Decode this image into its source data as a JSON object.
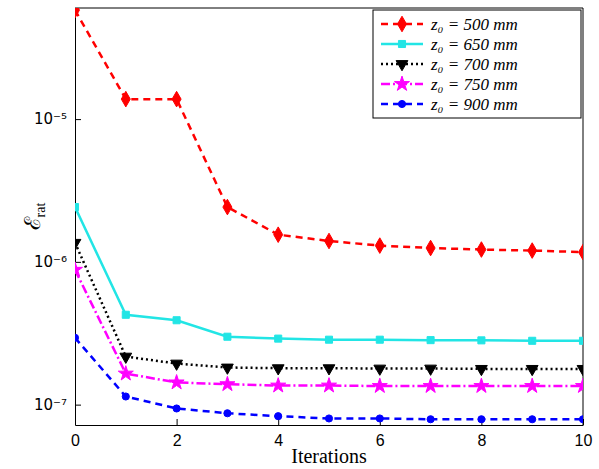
{
  "chart_data": {
    "type": "line",
    "y_label": "ℰrat",
    "x_label": "Iterations",
    "x": [
      0,
      1,
      2,
      3,
      4,
      5,
      6,
      7,
      8,
      9,
      10
    ],
    "xlim": [
      0,
      10
    ],
    "xticks": [
      0,
      2,
      4,
      6,
      8,
      10
    ],
    "ylim": [
      7.2e-08,
      6e-05
    ],
    "yticks": [
      {
        "value": 1e-07,
        "label": "10⁻⁷"
      },
      {
        "value": 1e-06,
        "label": "10⁻⁶"
      },
      {
        "value": 1e-05,
        "label": "10⁻⁵"
      }
    ],
    "log": "y",
    "grid": false,
    "legend": "upper-right",
    "series": [
      {
        "name": "z₀ = 500 mm",
        "color": "#ff0000",
        "marker": "diamond",
        "line_style": "dashed",
        "values": [
          5.8e-05,
          1.38e-05,
          1.38e-05,
          2.42e-06,
          1.55e-06,
          1.4e-06,
          1.3e-06,
          1.25e-06,
          1.22e-06,
          1.2e-06,
          1.17e-06
        ]
      },
      {
        "name": "z₀ = 650 mm",
        "color": "#22e5e5",
        "marker": "square",
        "line_style": "solid",
        "values": [
          2.42e-06,
          4.26e-07,
          3.9e-07,
          2.99e-07,
          2.9e-07,
          2.85e-07,
          2.85e-07,
          2.83e-07,
          2.82e-07,
          2.8e-07,
          2.8e-07
        ]
      },
      {
        "name": "z₀ = 700 mm",
        "color": "#000000",
        "marker": "triangle-down",
        "line_style": "dotted",
        "values": [
          1.36e-06,
          2.17e-07,
          1.94e-07,
          1.82e-07,
          1.8e-07,
          1.8e-07,
          1.79e-07,
          1.79e-07,
          1.78e-07,
          1.78e-07,
          1.78e-07
        ]
      },
      {
        "name": "z₀ = 750 mm",
        "color": "#ff00ff",
        "marker": "star",
        "line_style": "dashdot",
        "values": [
          8.8e-07,
          1.65e-07,
          1.43e-07,
          1.39e-07,
          1.36e-07,
          1.36e-07,
          1.35e-07,
          1.35e-07,
          1.35e-07,
          1.35e-07,
          1.35e-07
        ]
      },
      {
        "name": "z₀ = 900 mm",
        "color": "#0000ff",
        "marker": "circle",
        "line_style": "dashed",
        "values": [
          2.94e-07,
          1.14e-07,
          9.4e-08,
          8.7e-08,
          8.3e-08,
          8e-08,
          8e-08,
          7.9e-08,
          7.9e-08,
          7.9e-08,
          7.9e-08
        ]
      }
    ]
  }
}
